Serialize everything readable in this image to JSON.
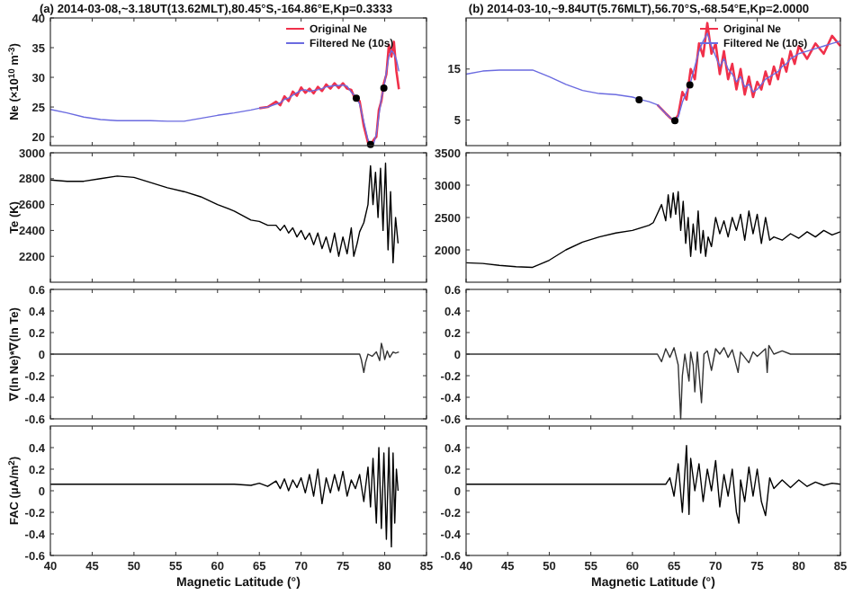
{
  "chart_data": [
    {
      "type": "line",
      "title": "(a) 2014-03-08,~3.18UT(13.62MLT),80.45°S,-164.86°E,Kp=0.3333",
      "ylabel": "Ne (×10$^{10}$ m$^{-3}$)",
      "xlim": [
        40,
        85
      ],
      "xticks": [
        40,
        45,
        50,
        55,
        60,
        65,
        70,
        75,
        80,
        85
      ],
      "ylim": [
        18.5,
        40
      ],
      "yticks": [
        20,
        25,
        30,
        35,
        40
      ],
      "tick_labels": "y",
      "legend": "top right",
      "x": [
        40,
        42,
        44,
        46,
        48,
        50,
        52,
        54,
        56,
        58,
        60,
        62,
        64,
        65,
        66,
        67,
        67.5,
        68,
        68.5,
        69,
        69.5,
        70,
        70.5,
        71,
        71.5,
        72,
        72.5,
        73,
        73.5,
        74,
        74.5,
        75,
        75.5,
        76,
        76.5,
        77,
        77.5,
        78,
        78.3,
        78.7,
        79,
        79.3,
        79.6,
        79.9,
        80.2,
        80.5,
        80.8,
        81.1,
        81.4,
        81.7
      ],
      "series": [
        {
          "name": "Original Ne",
          "color": "#f0304a",
          "values": [
            null,
            null,
            null,
            null,
            null,
            null,
            null,
            null,
            null,
            null,
            null,
            null,
            null,
            24.8,
            25.0,
            25.9,
            25.3,
            26.8,
            26.0,
            27.6,
            26.9,
            28.3,
            27.4,
            28.1,
            27.3,
            28.4,
            27.7,
            28.8,
            28.1,
            29.0,
            28.2,
            29.0,
            28.1,
            27.9,
            26.2,
            26.0,
            21.8,
            19.0,
            18.6,
            19.5,
            20.0,
            24.5,
            26.0,
            29.0,
            30.5,
            35.5,
            33.5,
            36.0,
            31.0,
            28.0
          ]
        },
        {
          "name": "Filtered Ne (10s)",
          "color": "#6b6be0",
          "values": [
            24.6,
            24.0,
            23.3,
            22.9,
            22.7,
            22.7,
            22.7,
            22.6,
            22.6,
            23.1,
            23.6,
            24.0,
            24.5,
            24.8,
            25.0,
            25.5,
            25.7,
            26.3,
            26.5,
            27.0,
            27.4,
            27.8,
            27.9,
            27.6,
            27.8,
            27.9,
            28.1,
            28.4,
            28.5,
            28.6,
            28.6,
            28.7,
            28.5,
            27.5,
            26.8,
            25.5,
            22.5,
            19.5,
            18.7,
            18.9,
            20.5,
            23.5,
            26.5,
            28.2,
            31,
            33.5,
            34.5,
            34,
            33,
            31
          ]
        },
        {
          "type": "scatter",
          "color": "#000000",
          "marker": "circle",
          "x": [
            76.6,
            78.3,
            79.9
          ],
          "values": [
            26.5,
            18.7,
            28.2
          ]
        }
      ]
    },
    {
      "type": "line",
      "title": "(b) 2014-03-10,~9.84UT(5.76MLT),56.70°S,-68.54°E,Kp=2.0000",
      "xlim": [
        40,
        85
      ],
      "xticks": [
        40,
        45,
        50,
        55,
        60,
        65,
        70,
        75,
        80,
        85
      ],
      "ylim": [
        0,
        25
      ],
      "yticks": [
        5,
        15
      ],
      "tick_labels": "y",
      "legend": "top right",
      "x": [
        40,
        42,
        44,
        46,
        48,
        50,
        52,
        54,
        56,
        58,
        60,
        61,
        62,
        63,
        64,
        64.5,
        65,
        65.5,
        66,
        66.5,
        67,
        67.5,
        68,
        68.5,
        69,
        69.5,
        70,
        70.5,
        71,
        71.5,
        72,
        72.5,
        73,
        73.5,
        74,
        74.5,
        75,
        75.5,
        76,
        76.5,
        77,
        77.5,
        78,
        78.5,
        79,
        79.5,
        80,
        81,
        82,
        83,
        84,
        85
      ],
      "series": [
        {
          "name": "Original Ne",
          "color": "#f0304a",
          "values": [
            null,
            null,
            null,
            null,
            null,
            null,
            null,
            null,
            null,
            null,
            null,
            null,
            null,
            8.0,
            6.3,
            5.5,
            4.8,
            6.0,
            10.5,
            9.0,
            15.0,
            13.0,
            20.0,
            17.5,
            24.0,
            18.0,
            20.0,
            14.0,
            18.5,
            13.0,
            16.0,
            11.0,
            15.0,
            10.0,
            13.5,
            9.5,
            12.5,
            11.0,
            14.5,
            12.0,
            15.5,
            13.0,
            17.0,
            14.5,
            18.5,
            16.0,
            19.5,
            17.0,
            20.0,
            18.0,
            21.5,
            19.5
          ]
        },
        {
          "name": "Filtered Ne (10s)",
          "color": "#6b6be0",
          "values": [
            14.0,
            14.6,
            14.8,
            14.8,
            14.8,
            13.5,
            12.0,
            10.8,
            10.2,
            10.0,
            9.5,
            9.0,
            8.6,
            8.0,
            6.3,
            5.5,
            5.0,
            5.6,
            8.5,
            10.5,
            12.5,
            15.5,
            18.5,
            20.5,
            22.0,
            19.5,
            17.5,
            15.5,
            17.0,
            15.0,
            14.0,
            12.5,
            13.5,
            11.5,
            12.0,
            10.5,
            11.0,
            12.0,
            13.0,
            13.5,
            14.0,
            14.5,
            15.5,
            16.0,
            17.0,
            17.5,
            18.0,
            18.5,
            19.0,
            19.5,
            20.0,
            20.5
          ]
        },
        {
          "type": "scatter",
          "color": "#000000",
          "marker": "circle",
          "x": [
            60.8,
            65.1,
            66.9
          ],
          "values": [
            9.0,
            4.9,
            11.9
          ]
        }
      ]
    },
    {
      "type": "line",
      "ylabel": "Te (K)",
      "xlim": [
        40,
        85
      ],
      "xticks": [
        40,
        45,
        50,
        55,
        60,
        65,
        70,
        75,
        80,
        85
      ],
      "ylim": [
        2000,
        3000
      ],
      "yticks": [
        2200,
        2400,
        2600,
        2800,
        3000
      ],
      "tick_labels": "y",
      "x": [
        40,
        42,
        44,
        46,
        48,
        50,
        52,
        54,
        56,
        58,
        60,
        62,
        64,
        65,
        66,
        67,
        67.5,
        68,
        68.5,
        69,
        69.5,
        70,
        70.5,
        71,
        71.5,
        72,
        72.5,
        73,
        73.5,
        74,
        74.5,
        75,
        75.5,
        76,
        76.3,
        76.7,
        77,
        77.5,
        78,
        78.3,
        78.6,
        78.9,
        79.2,
        79.5,
        79.8,
        80.1,
        80.4,
        80.7,
        81,
        81.3,
        81.6
      ],
      "series": [
        {
          "color": "#000000",
          "values": [
            2790,
            2780,
            2780,
            2800,
            2820,
            2810,
            2770,
            2730,
            2700,
            2660,
            2600,
            2550,
            2480,
            2470,
            2440,
            2440,
            2400,
            2440,
            2380,
            2420,
            2350,
            2400,
            2330,
            2380,
            2290,
            2380,
            2260,
            2350,
            2230,
            2380,
            2200,
            2350,
            2220,
            2420,
            2200,
            2300,
            2390,
            2460,
            2600,
            2900,
            2600,
            2850,
            2500,
            2880,
            2400,
            2920,
            2250,
            2700,
            2150,
            2500,
            2300
          ]
        }
      ]
    },
    {
      "type": "line",
      "xlim": [
        40,
        85
      ],
      "xticks": [
        40,
        45,
        50,
        55,
        60,
        65,
        70,
        75,
        80,
        85
      ],
      "ylim": [
        1500,
        3500
      ],
      "yticks": [
        2000,
        2500,
        3000,
        3500
      ],
      "tick_labels": "y",
      "x": [
        40,
        42,
        44,
        46,
        48,
        50,
        52,
        54,
        56,
        58,
        60,
        62,
        62.5,
        63,
        63.5,
        64,
        64.3,
        64.6,
        64.9,
        65.2,
        65.5,
        65.8,
        66.1,
        66.4,
        66.7,
        67,
        67.3,
        67.6,
        67.9,
        68.2,
        68.5,
        68.8,
        69.1,
        69.5,
        70,
        70.5,
        71,
        71.5,
        72,
        72.5,
        73,
        73.5,
        74,
        74.5,
        75,
        75.5,
        76,
        76.5,
        77,
        78,
        79,
        80,
        81,
        82,
        83,
        84,
        85
      ],
      "series": [
        {
          "color": "#000000",
          "values": [
            1800,
            1790,
            1760,
            1740,
            1730,
            1840,
            2000,
            2120,
            2200,
            2260,
            2300,
            2380,
            2420,
            2560,
            2700,
            2450,
            2850,
            2500,
            2880,
            2550,
            2900,
            2300,
            2750,
            2100,
            2500,
            1900,
            2400,
            2000,
            2600,
            1950,
            2300,
            1900,
            2200,
            2050,
            2500,
            2250,
            2450,
            2200,
            2500,
            2300,
            2550,
            2150,
            2600,
            2250,
            2550,
            2100,
            2500,
            2150,
            2200,
            2150,
            2250,
            2180,
            2280,
            2200,
            2300,
            2230,
            2280
          ]
        }
      ]
    },
    {
      "type": "line",
      "ylabel": "∇(ln Ne)*∇(ln Te)",
      "xlim": [
        40,
        85
      ],
      "xticks": [
        40,
        45,
        50,
        55,
        60,
        65,
        70,
        75,
        80,
        85
      ],
      "ylim": [
        -0.6,
        0.6
      ],
      "yticks": [
        -0.6,
        -0.4,
        -0.2,
        0,
        0.2,
        0.4,
        0.6
      ],
      "tick_labels": "y",
      "x": [
        40,
        77,
        77.2,
        77.5,
        77.7,
        78,
        78.5,
        79,
        79.4,
        79.6,
        79.8,
        80,
        80.3,
        80.6,
        81,
        81.3,
        81.7
      ],
      "series": [
        {
          "color": "#333333",
          "values": [
            0,
            0,
            -0.05,
            -0.17,
            -0.08,
            0,
            -0.02,
            0.02,
            -0.06,
            0.1,
            0.04,
            -0.05,
            0.03,
            -0.03,
            0.02,
            0.01,
            0.02
          ]
        }
      ]
    },
    {
      "type": "line",
      "xlim": [
        40,
        85
      ],
      "xticks": [
        40,
        45,
        50,
        55,
        60,
        65,
        70,
        75,
        80,
        85
      ],
      "ylim": [
        -0.6,
        0.6
      ],
      "yticks": [
        -0.6,
        -0.4,
        -0.2,
        0,
        0.2,
        0.4,
        0.6
      ],
      "tick_labels": "y",
      "x": [
        40,
        63,
        63.5,
        64,
        64.5,
        65,
        65.5,
        65.8,
        66,
        66.3,
        66.8,
        67,
        67.3,
        67.5,
        67.8,
        68.3,
        68.6,
        69,
        69.5,
        70,
        70.5,
        71,
        71.5,
        72,
        72.7,
        73,
        74,
        74.5,
        75,
        76,
        76.2,
        76.4,
        77,
        78,
        79,
        85
      ],
      "series": [
        {
          "color": "#333333",
          "values": [
            0,
            0,
            -0.07,
            0.05,
            -0.03,
            0.06,
            -0.1,
            -0.6,
            -0.2,
            0.0,
            -0.25,
            0.02,
            -0.1,
            -0.35,
            0.02,
            -0.45,
            0.0,
            0.03,
            -0.15,
            0.05,
            0.0,
            0.06,
            -0.03,
            0.04,
            -0.17,
            0.02,
            -0.08,
            0.02,
            -0.02,
            0.05,
            -0.17,
            0.08,
            0.0,
            0.03,
            0.0,
            0.0
          ]
        }
      ]
    },
    {
      "type": "line",
      "ylabel": "FAC (μA/m$^{2}$)",
      "xlabel": "Magnetic Latitude (°)",
      "xlim": [
        40,
        85
      ],
      "xticks": [
        40,
        45,
        50,
        55,
        60,
        65,
        70,
        75,
        80,
        85
      ],
      "ylim": [
        -0.6,
        0.6
      ],
      "yticks": [
        -0.6,
        -0.4,
        -0.2,
        0,
        0.2,
        0.4
      ],
      "x": [
        40,
        62,
        64,
        65,
        66,
        67,
        67.5,
        68,
        68.5,
        69,
        69.5,
        70,
        70.5,
        71,
        71.5,
        72,
        72.5,
        73,
        73.5,
        74,
        74.5,
        75,
        75.5,
        76,
        76.5,
        77,
        77.5,
        78,
        78.3,
        78.6,
        79,
        79.3,
        79.6,
        79.9,
        80.2,
        80.5,
        80.8,
        81,
        81.2,
        81.4,
        81.6
      ],
      "series": [
        {
          "color": "#000000",
          "values": [
            0.06,
            0.06,
            0.05,
            0.07,
            0.04,
            0.09,
            0.02,
            0.11,
            0.0,
            0.1,
            0.03,
            0.12,
            -0.02,
            0.15,
            -0.05,
            0.2,
            -0.12,
            0.12,
            -0.02,
            0.15,
            0.0,
            0.18,
            -0.05,
            0.1,
            0.02,
            0.15,
            -0.1,
            0.22,
            -0.15,
            0.3,
            -0.3,
            0.4,
            -0.35,
            0.35,
            -0.45,
            0.4,
            -0.52,
            0.35,
            -0.3,
            0.2,
            0.0
          ]
        }
      ]
    },
    {
      "type": "line",
      "xlabel": "Magnetic Latitude (°)",
      "xlim": [
        40,
        85
      ],
      "xticks": [
        40,
        45,
        50,
        55,
        60,
        65,
        70,
        75,
        80,
        85
      ],
      "ylim": [
        -0.6,
        0.6
      ],
      "yticks": [
        -0.6,
        -0.4,
        -0.2,
        0,
        0.2,
        0.4
      ],
      "x": [
        40,
        64,
        64.5,
        65,
        65.5,
        66,
        66.5,
        66.8,
        67,
        67.5,
        68,
        68.5,
        69,
        69.5,
        70,
        70.5,
        71,
        71.5,
        72,
        72.5,
        72.8,
        73,
        73.5,
        74,
        74.5,
        75,
        75.5,
        76,
        76.5,
        77,
        78,
        79,
        80,
        81,
        82,
        83,
        84,
        85
      ],
      "series": [
        {
          "color": "#000000",
          "values": [
            0.06,
            0.06,
            0.12,
            -0.05,
            0.25,
            -0.2,
            0.42,
            -0.22,
            0.3,
            0.0,
            0.25,
            -0.1,
            0.2,
            0.0,
            0.28,
            -0.15,
            0.15,
            -0.05,
            0.2,
            -0.2,
            -0.3,
            0.1,
            -0.1,
            0.22,
            -0.05,
            0.2,
            -0.1,
            -0.23,
            0.12,
            0.02,
            0.1,
            0.03,
            0.1,
            0.04,
            0.08,
            0.05,
            0.07,
            0.06
          ]
        }
      ]
    }
  ]
}
